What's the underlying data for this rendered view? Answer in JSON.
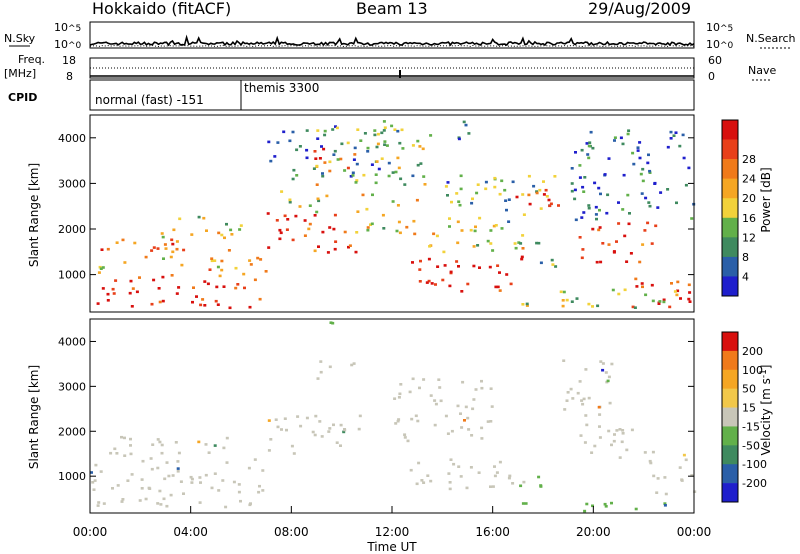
{
  "header": {
    "station": "Hokkaido (fitACF)",
    "beam": "Beam 13",
    "date": "29/Aug/2009"
  },
  "noise_panel": {
    "left_label": "N.Sky",
    "right_label": "N.Search",
    "left_ticks": [
      {
        "base": "10",
        "exp": "^5"
      },
      {
        "base": "10",
        "exp": "^0"
      }
    ],
    "right_ticks": [
      {
        "base": "10",
        "exp": "^5"
      },
      {
        "base": "10",
        "exp": "^0"
      }
    ]
  },
  "freq_panel": {
    "left_label": "Freq.",
    "left_unit": "[MHz]",
    "right_label": "Nave",
    "left_ticks": [
      "18",
      "8"
    ],
    "right_ticks": [
      "60",
      "0"
    ]
  },
  "cpid_panel": {
    "label": "CPID",
    "modes": [
      {
        "name": "normal (fast) -151",
        "start_hour": 0
      },
      {
        "name": "themis 3300",
        "start_hour": 6
      }
    ]
  },
  "time_axis": {
    "label": "Time UT",
    "ticks": [
      "00:00",
      "04:00",
      "08:00",
      "12:00",
      "16:00",
      "20:00",
      "00:00"
    ]
  },
  "colors": {
    "power_scale": [
      "#1f1fcc",
      "#2a5fa8",
      "#3f8a5f",
      "#62b04a",
      "#f2d23a",
      "#f5a623",
      "#f07a1a",
      "#e8401a",
      "#d8100e"
    ],
    "velocity_scale": [
      "#1f1fcc",
      "#2a5fa8",
      "#3f8a5f",
      "#62b04a",
      "#c8c6b8",
      "#f2c84a",
      "#f5a623",
      "#f07a1a",
      "#d8100e"
    ],
    "ground_scatter": "#c8c6b8"
  },
  "chart_data": [
    {
      "type": "heatmap",
      "name": "power",
      "xlabel": "Time UT",
      "ylabel": "Slant Range [km]",
      "xlim": [
        0,
        24
      ],
      "ylim": [
        180,
        4500
      ],
      "yticks": [
        "1000",
        "2000",
        "3000",
        "4000"
      ],
      "colorbar": {
        "label": "Power [dB]",
        "ticks": [
          "4",
          "8",
          "12",
          "16",
          "20",
          "24",
          "28"
        ],
        "range": [
          0,
          30
        ]
      },
      "regions": [
        {
          "t0": 0.0,
          "t1": 6.8,
          "r0": 300,
          "r1": 1000,
          "level": 28
        },
        {
          "t0": 0.0,
          "t1": 7.0,
          "r0": 1000,
          "r1": 1400,
          "level": 18
        },
        {
          "t0": 0.4,
          "t1": 6.0,
          "r0": 1400,
          "r1": 1800,
          "level": 22
        },
        {
          "t0": 2.0,
          "t1": 6.0,
          "r0": 1800,
          "r1": 2300,
          "level": 14
        },
        {
          "t0": 7.0,
          "t1": 10.8,
          "r0": 1500,
          "r1": 2400,
          "level": 26
        },
        {
          "t0": 7.5,
          "t1": 9.5,
          "r0": 2400,
          "r1": 3000,
          "level": 14
        },
        {
          "t0": 8.7,
          "t1": 10.6,
          "r0": 3200,
          "r1": 3800,
          "level": 26
        },
        {
          "t0": 8.5,
          "t1": 10.0,
          "r0": 3800,
          "r1": 4300,
          "level": 8
        },
        {
          "t0": 10.5,
          "t1": 13.0,
          "r0": 1900,
          "r1": 2800,
          "level": 16
        },
        {
          "t0": 12.7,
          "t1": 17.3,
          "r0": 650,
          "r1": 1450,
          "level": 28
        },
        {
          "t0": 12.5,
          "t1": 18.0,
          "r0": 1500,
          "r1": 2100,
          "level": 14
        },
        {
          "t0": 14.0,
          "t1": 18.5,
          "r0": 2100,
          "r1": 3200,
          "level": 10
        },
        {
          "t0": 16.5,
          "t1": 18.8,
          "r0": 2500,
          "r1": 3000,
          "level": 26
        },
        {
          "t0": 17.5,
          "t1": 18.5,
          "r0": 900,
          "r1": 1400,
          "level": 10
        },
        {
          "t0": 19.3,
          "t1": 22.5,
          "r0": 1300,
          "r1": 2200,
          "level": 26
        },
        {
          "t0": 21.0,
          "t1": 24.0,
          "r0": 300,
          "r1": 1000,
          "level": 28
        },
        {
          "t0": 16.8,
          "t1": 23.6,
          "r0": 300,
          "r1": 700,
          "level": 12
        },
        {
          "t0": 19.0,
          "t1": 24.0,
          "r0": 2200,
          "r1": 4200,
          "level": 6
        },
        {
          "t0": 7.0,
          "t1": 12.0,
          "r0": 3000,
          "r1": 4200,
          "level": 8
        },
        {
          "t0": 10.5,
          "t1": 13.5,
          "r0": 3000,
          "r1": 4400,
          "level": 12
        },
        {
          "t0": 14.0,
          "t1": 15.5,
          "r0": 4000,
          "r1": 4400,
          "level": 6
        }
      ]
    },
    {
      "type": "heatmap",
      "name": "velocity",
      "xlabel": "Time UT",
      "ylabel": "Slant Range [km]",
      "xlim": [
        0,
        24
      ],
      "ylim": [
        180,
        4500
      ],
      "yticks": [
        "1000",
        "2000",
        "3000",
        "4000"
      ],
      "colorbar": {
        "label": "Velocity [m s^-1]",
        "ticks": [
          "200",
          "100",
          "50",
          "15",
          "-15",
          "-50",
          "-100",
          "-200"
        ],
        "range": [
          -250,
          250
        ]
      },
      "regions": [
        {
          "t0": 0.0,
          "t1": 7.0,
          "r0": 300,
          "r1": 1400,
          "level": 0
        },
        {
          "t0": 0.4,
          "t1": 6.0,
          "r0": 1400,
          "r1": 1900,
          "level": 0
        },
        {
          "t0": 7.0,
          "t1": 10.8,
          "r0": 1500,
          "r1": 2400,
          "level": 0
        },
        {
          "t0": 8.7,
          "t1": 10.6,
          "r0": 3200,
          "r1": 3600,
          "level": 0
        },
        {
          "t0": 12.7,
          "t1": 17.3,
          "r0": 700,
          "r1": 1400,
          "level": 0
        },
        {
          "t0": 19.3,
          "t1": 22.5,
          "r0": 1400,
          "r1": 2200,
          "level": 0
        },
        {
          "t0": 18.6,
          "t1": 20.8,
          "r0": 2300,
          "r1": 3700,
          "level": 0
        },
        {
          "t0": 22.2,
          "t1": 24.0,
          "r0": 600,
          "r1": 1500,
          "level": 0
        },
        {
          "t0": 16.8,
          "t1": 23.6,
          "r0": 250,
          "r1": 450,
          "level": -60
        },
        {
          "t0": 17.0,
          "t1": 18.3,
          "r0": 700,
          "r1": 1100,
          "level": -60
        },
        {
          "t0": 8.7,
          "t1": 9.6,
          "r0": 4200,
          "r1": 4450,
          "level": -60
        },
        {
          "t0": 12.0,
          "t1": 16.0,
          "r0": 1800,
          "r1": 3200,
          "level": 0
        }
      ]
    }
  ]
}
